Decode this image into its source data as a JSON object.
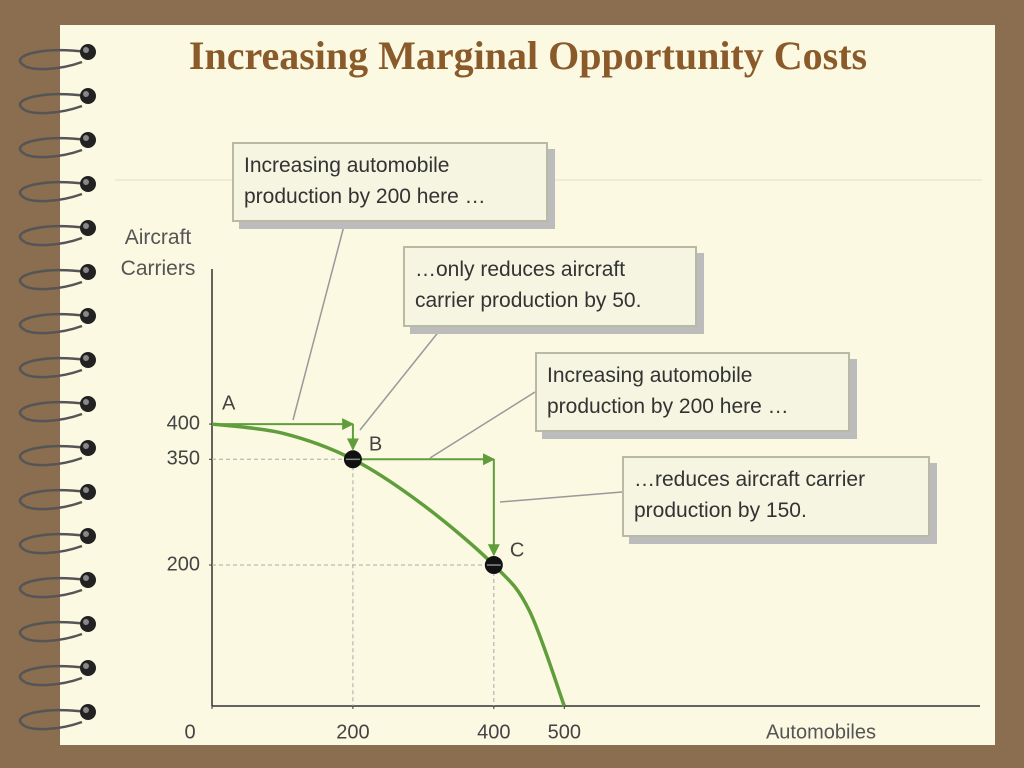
{
  "chart_data": {
    "type": "line",
    "title": "Increasing Marginal Opportunity Costs",
    "x_label": "Automobiles",
    "y_label": "Aircraft Carriers",
    "x": [
      0,
      100,
      200,
      300,
      400,
      450,
      500
    ],
    "values": [
      400,
      387,
      350,
      285,
      200,
      136,
      0
    ],
    "color": "#5f9e3a",
    "xlim": [
      0,
      1090
    ],
    "ylim": [
      0,
      620
    ],
    "xticks": [
      0,
      200,
      400,
      500
    ],
    "yticks": [
      200,
      350,
      400
    ],
    "points": [
      {
        "label": "A",
        "x": 0,
        "y": 400,
        "marker": false
      },
      {
        "label": "B",
        "x": 200,
        "y": 350,
        "marker": true
      },
      {
        "label": "C",
        "x": 400,
        "y": 200,
        "marker": true
      }
    ],
    "callouts": [
      "Increasing automobile production by 200 here …",
      "…only reduces aircraft carrier production by 50.",
      "Increasing automobile production by 200 here …",
      "…reduces aircraft carrier production by 150."
    ]
  }
}
